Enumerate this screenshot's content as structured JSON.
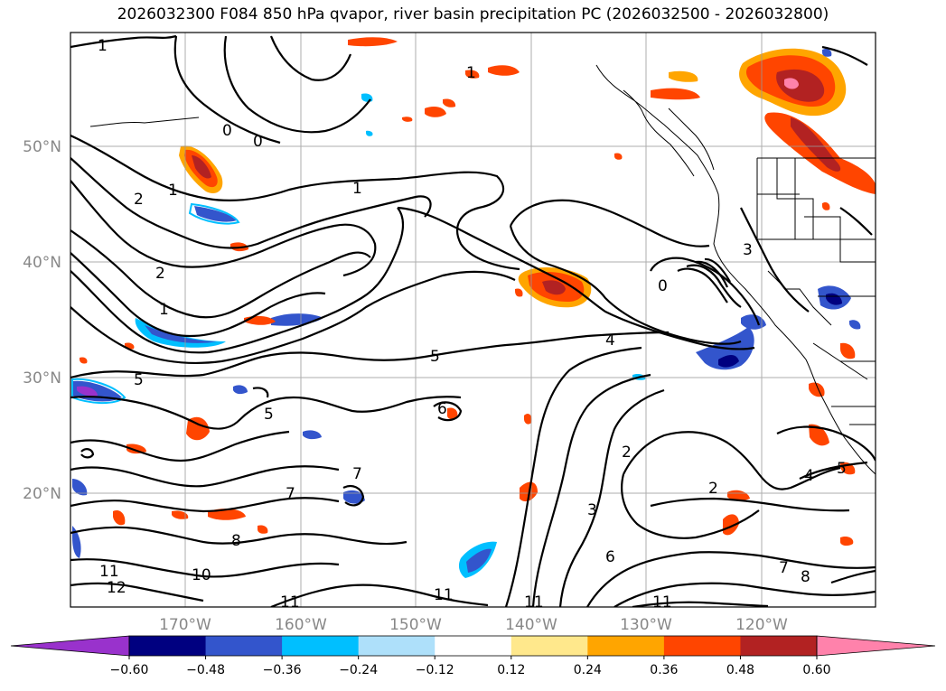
{
  "title": "2026032300 F084 850 hPa qvapor, river basin precipitation PC (2026032500 - 2026032800)",
  "map": {
    "lat_labels": [
      "50°N",
      "40°N",
      "30°N",
      "20°N"
    ],
    "lon_labels": [
      "170°W",
      "160°W",
      "150°W",
      "140°W",
      "130°W",
      "120°W"
    ],
    "contour_labels": [
      "1",
      "0",
      "0",
      "1",
      "2",
      "1",
      "1",
      "2",
      "1",
      "0",
      "3",
      "5",
      "4",
      "5",
      "5",
      "6",
      "2",
      "2",
      "3",
      "4",
      "5",
      "6",
      "7",
      "7",
      "8",
      "7",
      "8",
      "10",
      "11",
      "12",
      "11",
      "11",
      "11",
      "11"
    ],
    "lon_range": [
      -180,
      -110
    ],
    "lat_range": [
      10,
      60
    ]
  },
  "colorbar": {
    "colors": [
      "#9932cc",
      "#000080",
      "#3355cc",
      "#00bfff",
      "#aee0fa",
      "#ffffff",
      "#ffe88c",
      "#ffa500",
      "#ff4500",
      "#b22222",
      "#ff82ab",
      "#ff82ab"
    ],
    "tick_labels": [
      "−0.60",
      "−0.48",
      "−0.36",
      "−0.24",
      "−0.12",
      "0.12",
      "0.24",
      "0.36",
      "0.48",
      "0.60"
    ],
    "levels": [
      -0.6,
      -0.48,
      -0.36,
      -0.24,
      -0.12,
      0.12,
      0.24,
      0.36,
      0.48,
      0.6
    ]
  }
}
